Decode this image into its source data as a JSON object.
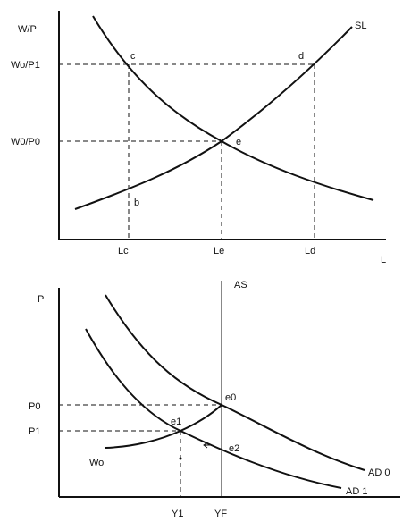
{
  "labor_market": {
    "y_axis_label": "W/P",
    "x_axis_label": "L",
    "wage_labels": {
      "high": "Wo/P1",
      "initial": "W0/P0"
    },
    "labor_ticks": {
      "lc": "Lc",
      "le": "Le",
      "ld": "Ld"
    },
    "curve_labels": {
      "supply": "SL"
    },
    "point_labels": {
      "c": "c",
      "d": "d",
      "e": "e",
      "b": "b"
    }
  },
  "goods_market": {
    "y_axis_label": "P",
    "price_labels": {
      "p0": "P0",
      "p1": "P1"
    },
    "output_ticks": {
      "y1": "Y1",
      "yf": "YF"
    },
    "curve_labels": {
      "as": "AS",
      "ad0": "AD 0",
      "ad1": "AD 1",
      "wo": "Wo"
    },
    "point_labels": {
      "e0": "e0",
      "e1": "e1",
      "e2": "e2"
    }
  }
}
